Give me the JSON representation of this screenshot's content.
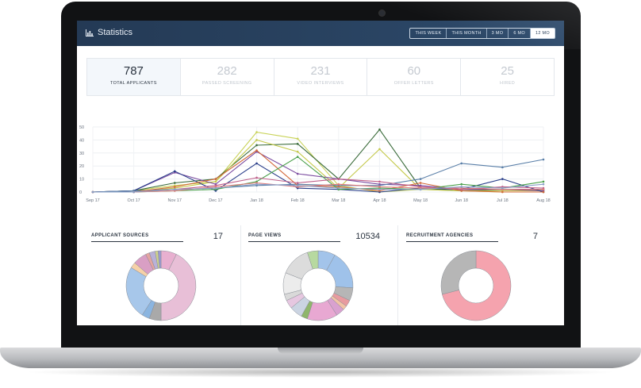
{
  "header": {
    "title": "Statistics",
    "ranges": [
      "THIS WEEK",
      "THIS MONTH",
      "3 MO",
      "6 MO",
      "12 MO"
    ],
    "active_range": "12 MO"
  },
  "stats": [
    {
      "value": "787",
      "label": "TOTAL APPLICANTS",
      "active": true
    },
    {
      "value": "282",
      "label": "PASSED SCREENING",
      "active": false
    },
    {
      "value": "231",
      "label": "VIDEO INTERVIEWS",
      "active": false
    },
    {
      "value": "60",
      "label": "OFFER LETTERS",
      "active": false
    },
    {
      "value": "25",
      "label": "HIRED",
      "active": false
    }
  ],
  "chart_data": [
    {
      "type": "line",
      "x": [
        "Sep 17",
        "Oct 17",
        "Nov 17",
        "Dec 17",
        "Jan 18",
        "Feb 18",
        "Mar 18",
        "Apr 18",
        "May 18",
        "Jun 18",
        "Jul 18",
        "Aug 18"
      ],
      "y_tick_labels": [
        "0",
        "10",
        "20",
        "30",
        "40",
        "50"
      ],
      "ylim": [
        0,
        50
      ],
      "grid": true,
      "series": [
        {
          "color": "#c9d35a",
          "values": [
            0,
            1,
            5,
            8,
            46,
            41,
            5,
            0,
            2,
            1,
            0,
            0
          ]
        },
        {
          "color": "#3a6b3a",
          "values": [
            0,
            1,
            7,
            10,
            36,
            37,
            10,
            48,
            3,
            1,
            2,
            2
          ]
        },
        {
          "color": "#c4c94a",
          "values": [
            0,
            0,
            3,
            8,
            40,
            31,
            3,
            33,
            2,
            1,
            1,
            1
          ]
        },
        {
          "color": "#7b4ca0",
          "values": [
            0,
            1,
            15,
            6,
            31,
            14,
            10,
            6,
            5,
            2,
            2,
            1
          ]
        },
        {
          "color": "#2a3e8a",
          "values": [
            0,
            1,
            16,
            1,
            22,
            3,
            2,
            0,
            3,
            2,
            10,
            0
          ]
        },
        {
          "color": "#5a7fa8",
          "values": [
            0,
            1,
            2,
            3,
            5,
            6,
            5,
            5,
            10,
            22,
            19,
            25
          ]
        },
        {
          "color": "#d36a3a",
          "values": [
            0,
            0,
            4,
            10,
            32,
            5,
            4,
            1,
            7,
            1,
            0,
            0
          ]
        },
        {
          "color": "#4aa04a",
          "values": [
            0,
            0,
            1,
            2,
            8,
            27,
            2,
            3,
            2,
            6,
            3,
            8
          ]
        },
        {
          "color": "#c0608a",
          "values": [
            0,
            0,
            2,
            5,
            11,
            7,
            10,
            8,
            4,
            2,
            4,
            3
          ]
        },
        {
          "color": "#e07b7b",
          "values": [
            0,
            0,
            1,
            4,
            7,
            4,
            6,
            4,
            3,
            3,
            2,
            2
          ]
        },
        {
          "color": "#8aa0c8",
          "values": [
            0,
            0,
            2,
            3,
            6,
            5,
            3,
            2,
            2,
            4,
            3,
            6
          ]
        }
      ]
    },
    {
      "type": "pie",
      "title": "APPLICANT SOURCES",
      "total": "17",
      "values": [
        8,
        47,
        6,
        4,
        27,
        3,
        7,
        2,
        3,
        1.5,
        1.5
      ],
      "colors": [
        "#e8b0d0",
        "#e8bfd7",
        "#a9a9a9",
        "#8bb5e0",
        "#a7c7ea",
        "#f6d1a7",
        "#d99fc4",
        "#e4a4a0",
        "#b9b1d8",
        "#cfd28d",
        "#9a9ad0"
      ]
    },
    {
      "type": "pie",
      "title": "PAGE VIEWS",
      "total": "10534",
      "values": [
        8,
        18,
        6,
        3,
        2,
        4,
        14,
        3,
        6,
        4,
        3,
        10,
        14,
        5
      ],
      "colors": [
        "#a3c4ea",
        "#9fc2ea",
        "#b6b6b6",
        "#e89ba0",
        "#f2c3a6",
        "#d9a1cf",
        "#e8a8d2",
        "#8fb66b",
        "#cbd4e2",
        "#e6c7e0",
        "#d9d9d9",
        "#ececec",
        "#dcdcdc",
        "#b7d9a0"
      ]
    },
    {
      "type": "pie",
      "title": "RECRUITMENT AGENCIES",
      "total": "7",
      "values": [
        71,
        29
      ],
      "colors": [
        "#f5a3ae",
        "#b6b6b6"
      ]
    }
  ]
}
